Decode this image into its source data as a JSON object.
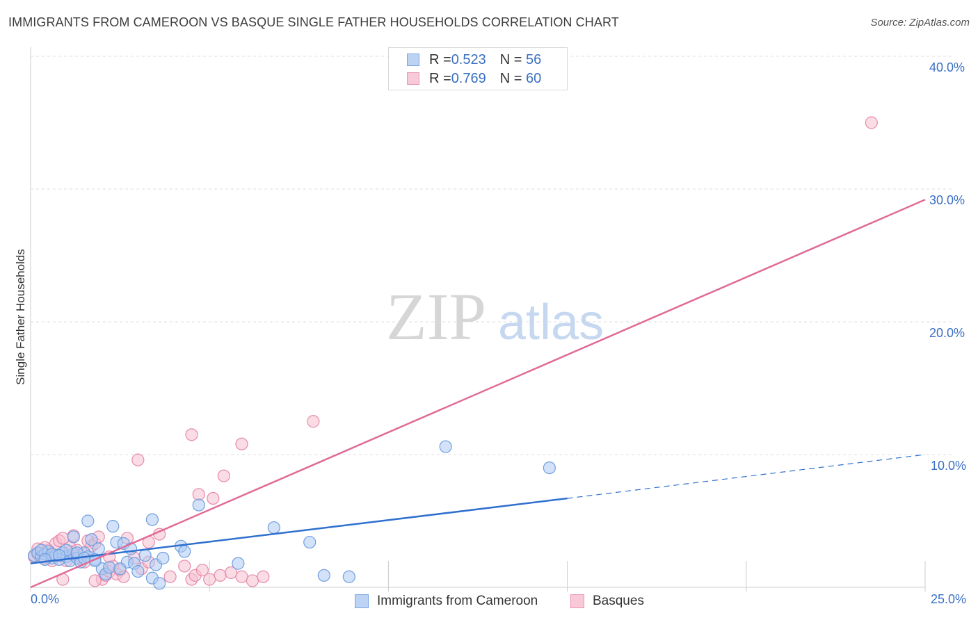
{
  "title": "IMMIGRANTS FROM CAMEROON VS BASQUE SINGLE FATHER HOUSEHOLDS CORRELATION CHART",
  "source": "Source: ZipAtlas.com",
  "watermark": {
    "zip": "ZIP",
    "atlas": "atlas"
  },
  "colors": {
    "blue_fill": "#aecbf2",
    "blue_stroke": "#6f9fe0",
    "blue_line": "#2f6fcf",
    "pink_fill": "#f6bfd0",
    "pink_stroke": "#e78aab",
    "pink_line": "#e06a96",
    "tick_text": "#3a6fc4",
    "grid": "#dddddd"
  },
  "legend_top": [
    {
      "r_label": "R = ",
      "r_value": "0.523",
      "n_label": "N = ",
      "n_value": "56",
      "color": "blue"
    },
    {
      "r_label": "R = ",
      "r_value": "0.769",
      "n_label": "N = ",
      "n_value": "60",
      "color": "pink"
    }
  ],
  "chart_data": {
    "type": "scatter",
    "title": "IMMIGRANTS FROM CAMEROON VS BASQUE SINGLE FATHER HOUSEHOLDS CORRELATION CHART",
    "xlabel": "",
    "ylabel": "Single Father Households",
    "xlim": [
      0,
      25
    ],
    "ylim": [
      0,
      41
    ],
    "x_tick_labels": [
      "0.0%",
      "25.0%"
    ],
    "y_ticks": [
      10,
      20,
      30,
      40
    ],
    "y_tick_labels": [
      "10.0%",
      "20.0%",
      "30.0%",
      "40.0%"
    ],
    "grid": true,
    "legend_position": "bottom",
    "series": [
      {
        "name": "Immigrants from Cameroon",
        "color": "blue",
        "points": [
          [
            0.1,
            2.4
          ],
          [
            0.2,
            2.6
          ],
          [
            0.3,
            2.3
          ],
          [
            0.4,
            2.5
          ],
          [
            0.5,
            2.7
          ],
          [
            0.6,
            2.2
          ],
          [
            0.7,
            2.4
          ],
          [
            0.8,
            2.1
          ],
          [
            0.9,
            2.6
          ],
          [
            1.0,
            2.3
          ],
          [
            1.1,
            2.0
          ],
          [
            1.2,
            2.5
          ],
          [
            1.3,
            2.2
          ],
          [
            1.4,
            1.9
          ],
          [
            1.5,
            2.6
          ],
          [
            1.6,
            2.3
          ],
          [
            1.7,
            3.6
          ],
          [
            1.8,
            2.1
          ],
          [
            1.9,
            2.9
          ],
          [
            2.0,
            1.4
          ],
          [
            2.1,
            1.0
          ],
          [
            2.2,
            1.5
          ],
          [
            2.3,
            4.6
          ],
          [
            2.4,
            3.4
          ],
          [
            2.6,
            3.3
          ],
          [
            2.7,
            1.9
          ],
          [
            2.9,
            1.8
          ],
          [
            3.2,
            2.4
          ],
          [
            3.4,
            0.7
          ],
          [
            3.5,
            1.7
          ],
          [
            3.6,
            0.3
          ],
          [
            3.7,
            2.2
          ],
          [
            1.6,
            5.0
          ],
          [
            3.4,
            5.1
          ],
          [
            4.2,
            3.1
          ],
          [
            4.3,
            2.7
          ],
          [
            4.7,
            6.2
          ],
          [
            5.8,
            1.8
          ],
          [
            6.8,
            4.5
          ],
          [
            7.8,
            3.4
          ],
          [
            8.2,
            0.9
          ],
          [
            8.9,
            0.8
          ],
          [
            11.6,
            10.6
          ],
          [
            14.5,
            9.0
          ],
          [
            0.3,
            2.8
          ],
          [
            0.6,
            2.5
          ],
          [
            1.0,
            2.8
          ],
          [
            1.3,
            2.6
          ],
          [
            1.8,
            2.0
          ],
          [
            2.5,
            1.4
          ],
          [
            2.8,
            2.9
          ],
          [
            3.0,
            1.2
          ],
          [
            1.2,
            3.8
          ],
          [
            0.4,
            2.1
          ],
          [
            0.8,
            2.4
          ],
          [
            1.5,
            2.2
          ]
        ]
      },
      {
        "name": "Basques",
        "color": "pink",
        "points": [
          [
            0.1,
            2.3
          ],
          [
            0.2,
            2.5
          ],
          [
            0.3,
            2.6
          ],
          [
            0.4,
            2.2
          ],
          [
            0.5,
            2.8
          ],
          [
            0.6,
            2.4
          ],
          [
            0.7,
            3.3
          ],
          [
            0.8,
            3.5
          ],
          [
            0.9,
            3.7
          ],
          [
            1.0,
            2.0
          ],
          [
            1.1,
            2.7
          ],
          [
            1.2,
            3.9
          ],
          [
            1.3,
            2.4
          ],
          [
            1.4,
            2.1
          ],
          [
            1.5,
            2.6
          ],
          [
            1.6,
            3.5
          ],
          [
            1.7,
            3.1
          ],
          [
            1.8,
            3.3
          ],
          [
            1.9,
            3.8
          ],
          [
            2.0,
            0.6
          ],
          [
            2.1,
            0.9
          ],
          [
            2.2,
            1.2
          ],
          [
            2.3,
            1.6
          ],
          [
            2.4,
            1.0
          ],
          [
            2.5,
            1.3
          ],
          [
            2.7,
            3.7
          ],
          [
            2.9,
            2.2
          ],
          [
            3.1,
            1.4
          ],
          [
            3.3,
            1.9
          ],
          [
            3.6,
            4.0
          ],
          [
            3.9,
            0.8
          ],
          [
            4.3,
            1.6
          ],
          [
            4.5,
            0.6
          ],
          [
            4.6,
            0.9
          ],
          [
            4.8,
            1.3
          ],
          [
            5.0,
            0.6
          ],
          [
            5.3,
            0.9
          ],
          [
            5.6,
            1.1
          ],
          [
            5.9,
            0.8
          ],
          [
            6.2,
            0.5
          ],
          [
            6.5,
            0.8
          ],
          [
            4.7,
            7.0
          ],
          [
            5.1,
            6.7
          ],
          [
            5.4,
            8.4
          ],
          [
            5.9,
            10.8
          ],
          [
            4.5,
            11.5
          ],
          [
            3.0,
            9.6
          ],
          [
            7.9,
            12.5
          ],
          [
            23.5,
            35.0
          ],
          [
            0.4,
            3.0
          ],
          [
            0.9,
            0.6
          ],
          [
            1.5,
            1.9
          ],
          [
            1.8,
            0.5
          ],
          [
            2.6,
            0.8
          ],
          [
            3.3,
            3.4
          ],
          [
            0.6,
            2.0
          ],
          [
            1.1,
            3.0
          ],
          [
            2.2,
            2.3
          ],
          [
            0.2,
            2.9
          ],
          [
            1.3,
            2.8
          ]
        ]
      }
    ],
    "trend_lines": [
      {
        "series": "Immigrants from Cameroon",
        "x0": 0,
        "y0": 1.8,
        "x1": 15.0,
        "y1": 6.7,
        "dashed_to_x": 25,
        "dashed_to_y": 10.0
      },
      {
        "series": "Basques",
        "x0": 0,
        "y0": 0,
        "x1": 25,
        "y1": 29.2
      }
    ]
  }
}
